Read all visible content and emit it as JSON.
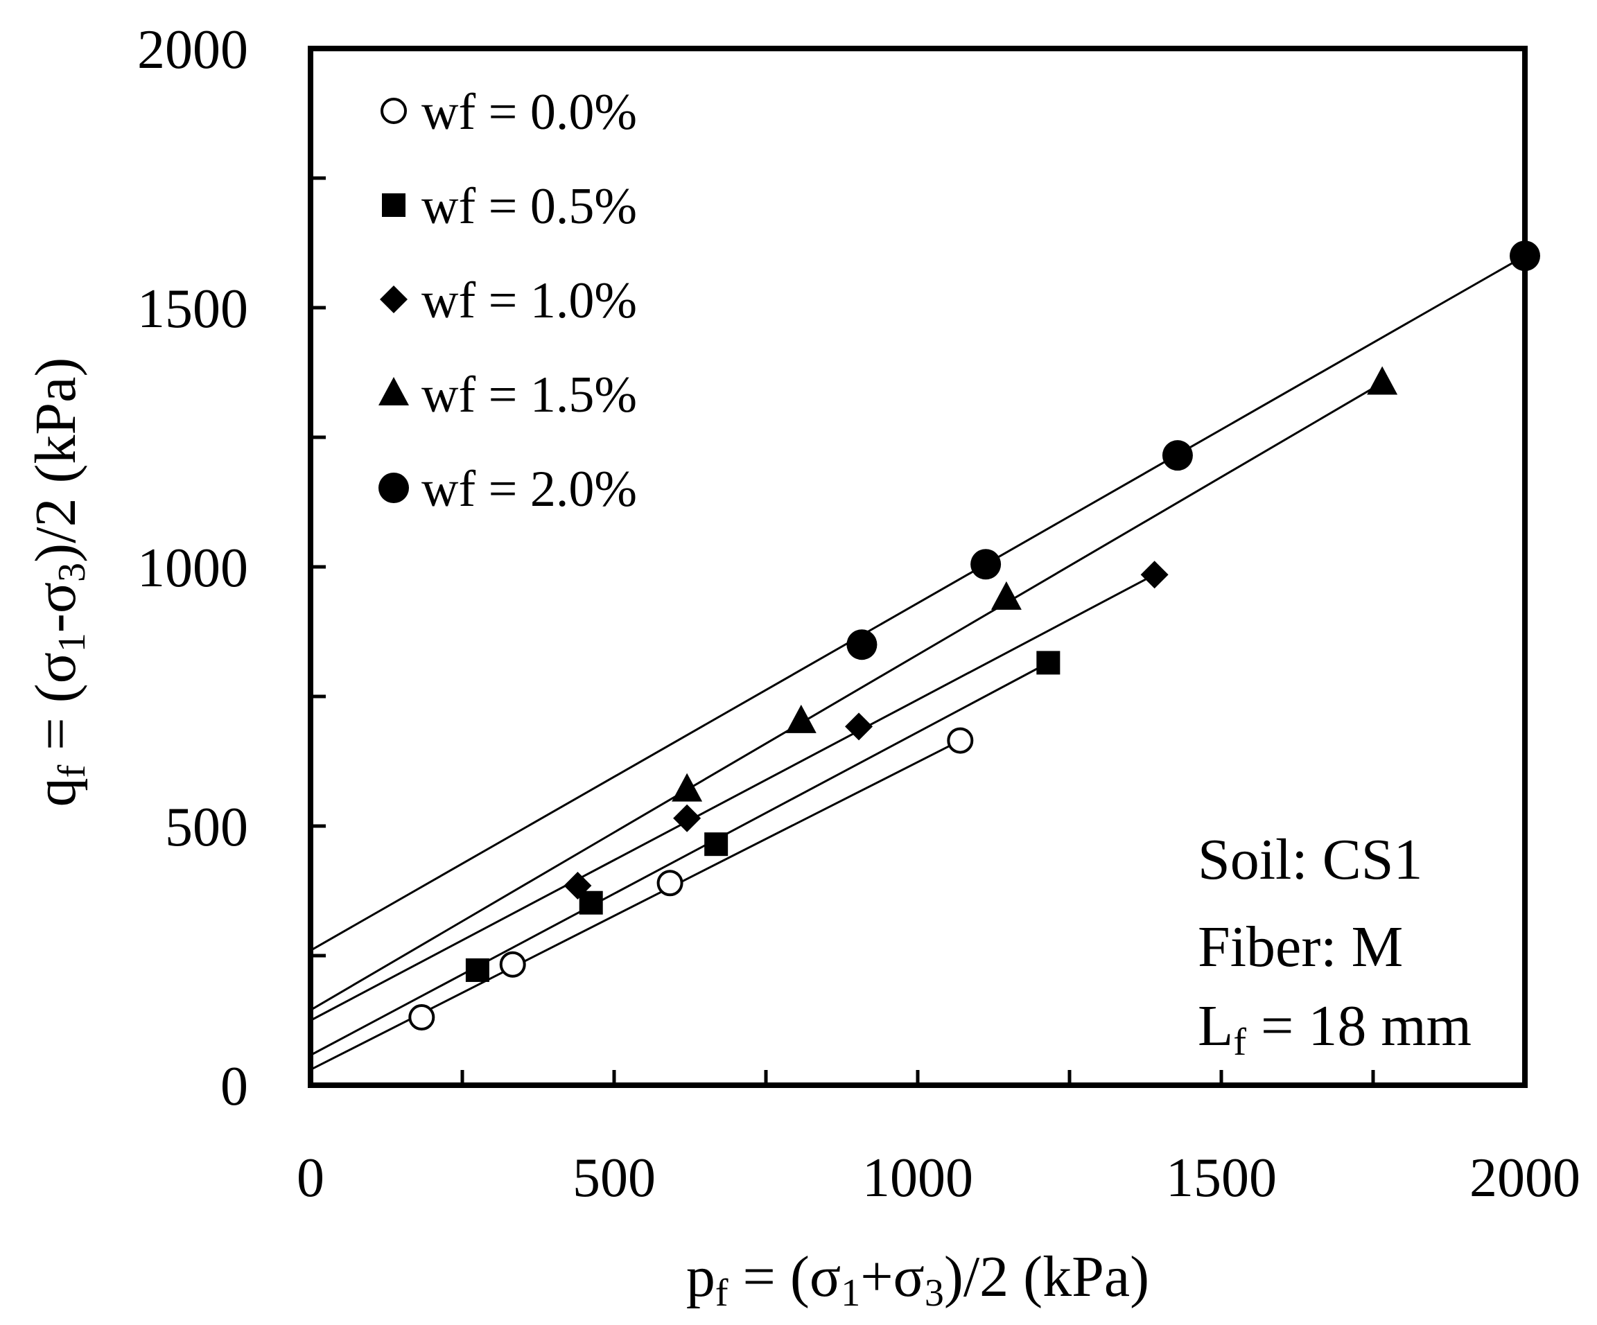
{
  "chart_data": {
    "type": "scatter",
    "y_axis_label": {
      "main": "q",
      "sub_f": "f",
      "middle": " = (σ",
      "sub_1": "1",
      "minus": "-σ",
      "sub_3": "3",
      "end": ")/2 (kPa)"
    },
    "x_axis_label": {
      "main": "p",
      "sub_f": "f",
      "middle": " = (σ",
      "sub_1": "1",
      "plus": "+σ",
      "sub_3": "3",
      "end": ")/2 (kPa)"
    },
    "xlim": [
      0,
      2000
    ],
    "ylim": [
      0,
      2000
    ],
    "x_ticks": [
      0,
      500,
      1000,
      1500,
      2000
    ],
    "y_ticks": [
      0,
      500,
      1000,
      1500,
      2000
    ],
    "x_tick_labels": [
      "0",
      "500",
      "1000",
      "1500",
      "2000"
    ],
    "y_tick_labels": [
      "0",
      "500",
      "1000",
      "1500",
      "2000"
    ],
    "legend_position": "top-left",
    "series": [
      {
        "name": "wf = 0.0%",
        "marker": "open-circle",
        "points": [
          [
            183,
            131
          ],
          [
            333,
            233
          ],
          [
            592,
            390
          ],
          [
            1070,
            665
          ]
        ],
        "fit_line": {
          "x": [
            0,
            1070
          ],
          "y": [
            30,
            665
          ]
        }
      },
      {
        "name": "wf = 0.5%",
        "marker": "square",
        "points": [
          [
            275,
            222
          ],
          [
            462,
            352
          ],
          [
            668,
            465
          ],
          [
            1215,
            815
          ]
        ],
        "fit_line": {
          "x": [
            0,
            1215
          ],
          "y": [
            58,
            815
          ]
        }
      },
      {
        "name": "wf = 1.0%",
        "marker": "diamond",
        "points": [
          [
            440,
            385
          ],
          [
            620,
            515
          ],
          [
            903,
            692
          ],
          [
            1390,
            985
          ]
        ],
        "fit_line": {
          "x": [
            0,
            1390
          ],
          "y": [
            125,
            985
          ]
        }
      },
      {
        "name": "wf = 1.5%",
        "marker": "triangle",
        "points": [
          [
            620,
            570
          ],
          [
            808,
            702
          ],
          [
            1146,
            940
          ],
          [
            1765,
            1355
          ]
        ],
        "fit_line": {
          "x": [
            0,
            1765
          ],
          "y": [
            145,
            1355
          ]
        }
      },
      {
        "name": "wf = 2.0%",
        "marker": "filled-circle",
        "points": [
          [
            908,
            850
          ],
          [
            1112,
            1005
          ],
          [
            1428,
            1215
          ],
          [
            2000,
            1600
          ]
        ],
        "fit_line": {
          "x": [
            0,
            2000
          ],
          "y": [
            260,
            1600
          ]
        }
      }
    ],
    "annotations": {
      "soil": "Soil: CS1",
      "fiber": "Fiber: M",
      "length_main": "L",
      "length_sub": "f",
      "length_value": " = 18 mm"
    }
  }
}
